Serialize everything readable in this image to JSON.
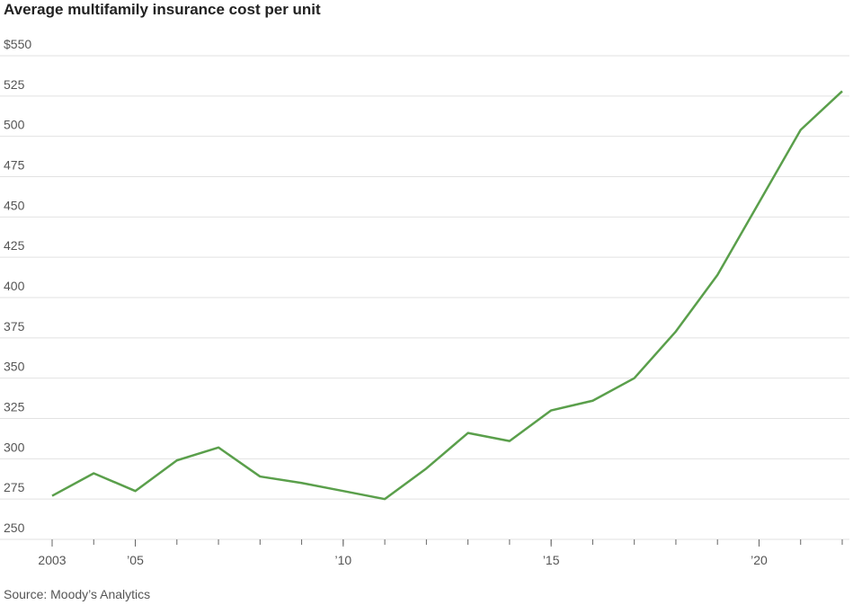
{
  "chart_data": {
    "type": "line",
    "title": "Average multifamily insurance cost per unit",
    "source": "Source: Moody’s Analytics",
    "x": [
      2003,
      2004,
      2005,
      2006,
      2007,
      2008,
      2009,
      2010,
      2011,
      2012,
      2013,
      2014,
      2015,
      2016,
      2017,
      2018,
      2019,
      2020,
      2021,
      2022
    ],
    "series": [
      {
        "color": "#5a9f4b",
        "values": [
          277,
          291,
          280,
          299,
          307,
          289,
          285,
          280,
          275,
          294,
          316,
          311,
          330,
          336,
          350,
          379,
          414,
          459,
          504,
          528
        ]
      }
    ],
    "xlim": [
      2003,
      2022
    ],
    "xticks": [
      {
        "value": 2003,
        "label": "2003"
      },
      {
        "value": 2005,
        "label": "’05"
      },
      {
        "value": 2010,
        "label": "’10"
      },
      {
        "value": 2015,
        "label": "’15"
      },
      {
        "value": 2020,
        "label": "’20"
      }
    ],
    "ylim": [
      250,
      550
    ],
    "yticks": [
      250,
      275,
      300,
      325,
      350,
      375,
      400,
      425,
      450,
      475,
      500,
      525,
      {
        "value": 550,
        "label": "$550"
      }
    ],
    "grid": true
  }
}
